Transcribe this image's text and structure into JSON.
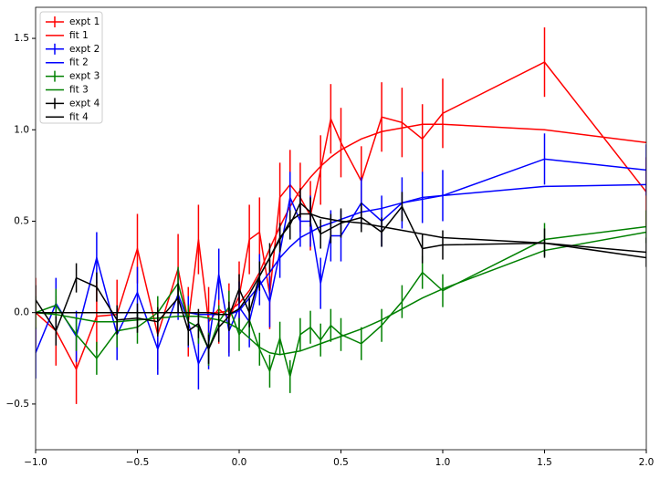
{
  "chart_data": {
    "type": "errorbar",
    "x": [
      -1,
      -0.9,
      -0.8,
      -0.7,
      -0.6,
      -0.5,
      -0.4,
      -0.3,
      -0.25,
      -0.2,
      -0.15,
      -0.1,
      -0.05,
      0,
      0.05,
      0.1,
      0.15,
      0.2,
      0.25,
      0.3,
      0.35,
      0.4,
      0.45,
      0.5,
      0.6,
      0.7,
      0.8,
      0.9,
      1.0,
      1.5,
      2.0
    ],
    "series": [
      {
        "name": "expt 1",
        "color": "#ff0000",
        "error": 0.19,
        "values": [
          0,
          -0.1,
          -0.31,
          -0.02,
          -0.01,
          0.35,
          -0.12,
          0.24,
          -0.05,
          0.4,
          -0.05,
          0.02,
          -0.03,
          0.09,
          0.4,
          0.44,
          0.1,
          0.63,
          0.7,
          0.63,
          0.53,
          0.78,
          1.06,
          0.93,
          0.72,
          1.07,
          1.04,
          0.95,
          1.09,
          1.37,
          0.66
        ]
      },
      {
        "name": "fit 1",
        "color": "#ff0000",
        "values": [
          0,
          0,
          0,
          0,
          0,
          0,
          0,
          0,
          0,
          0,
          0,
          0,
          0.01,
          0.05,
          0.12,
          0.22,
          0.35,
          0.47,
          0.58,
          0.67,
          0.74,
          0.8,
          0.85,
          0.89,
          0.95,
          0.99,
          1.01,
          1.03,
          1.03,
          1.0,
          0.93
        ]
      },
      {
        "name": "expt 2",
        "color": "#0000ff",
        "error": 0.14,
        "values": [
          -0.22,
          0.05,
          -0.13,
          0.3,
          -0.12,
          0.11,
          -0.2,
          0.1,
          -0.05,
          -0.28,
          -0.17,
          0.21,
          -0.1,
          0.03,
          -0.05,
          0.18,
          0.06,
          0.33,
          0.63,
          0.5,
          0.5,
          0.16,
          0.42,
          0.42,
          0.6,
          0.5,
          0.6,
          0.63,
          0.64,
          0.84,
          0.78
        ]
      },
      {
        "name": "fit 2",
        "color": "#0000ff",
        "values": [
          0,
          0,
          0,
          0,
          0,
          0,
          0,
          0,
          0,
          -0.01,
          -0.01,
          -0.01,
          -0.01,
          0.01,
          0.08,
          0.15,
          0.22,
          0.3,
          0.36,
          0.41,
          0.44,
          0.47,
          0.49,
          0.51,
          0.55,
          0.57,
          0.6,
          0.62,
          0.64,
          0.69,
          0.7
        ]
      },
      {
        "name": "expt 3",
        "color": "#008000",
        "error": 0.09,
        "values": [
          0,
          0.04,
          -0.12,
          -0.25,
          -0.1,
          -0.08,
          0,
          0.16,
          -0.05,
          -0.08,
          -0.2,
          -0.05,
          0.03,
          -0.12,
          -0.04,
          -0.2,
          -0.32,
          -0.14,
          -0.35,
          -0.12,
          -0.08,
          -0.15,
          -0.07,
          -0.12,
          -0.17,
          -0.07,
          0.06,
          0.22,
          0.12,
          0.4,
          0.47
        ]
      },
      {
        "name": "fit 3",
        "color": "#008000",
        "values": [
          0,
          -0.01,
          -0.03,
          -0.05,
          -0.05,
          -0.04,
          -0.03,
          -0.02,
          -0.02,
          -0.02,
          -0.03,
          -0.04,
          -0.06,
          -0.09,
          -0.14,
          -0.19,
          -0.22,
          -0.23,
          -0.22,
          -0.21,
          -0.19,
          -0.17,
          -0.15,
          -0.13,
          -0.09,
          -0.04,
          0.02,
          0.08,
          0.13,
          0.34,
          0.44
        ]
      },
      {
        "name": "expt 4",
        "color": "#000000",
        "error": 0.08,
        "values": [
          0.07,
          -0.1,
          0.19,
          0.14,
          -0.04,
          -0.03,
          -0.05,
          0.08,
          -0.1,
          -0.06,
          -0.2,
          -0.08,
          -0.02,
          0.13,
          0,
          0.2,
          0.3,
          0.41,
          0.48,
          0.6,
          0.55,
          0.43,
          0.46,
          0.49,
          0.52,
          0.44,
          0.58,
          0.35,
          0.37,
          0.38,
          0.33
        ]
      },
      {
        "name": "fit 4",
        "color": "#000000",
        "values": [
          0,
          0,
          0,
          0,
          0,
          0,
          0,
          0,
          0,
          0,
          0,
          -0.01,
          -0.01,
          0.02,
          0.1,
          0.2,
          0.3,
          0.4,
          0.5,
          0.54,
          0.54,
          0.52,
          0.51,
          0.5,
          0.49,
          0.47,
          0.45,
          0.43,
          0.41,
          0.38,
          0.3
        ]
      }
    ],
    "xlim": [
      -1.0,
      2.0
    ],
    "ylim": [
      -0.75,
      1.67
    ],
    "xticks": [
      {
        "value": -1.0,
        "label": "−1.0"
      },
      {
        "value": -0.5,
        "label": "−0.5"
      },
      {
        "value": 0,
        "label": "0.0"
      },
      0.5,
      {
        "value": 1,
        "label": "1.0"
      },
      1.5,
      {
        "value": 2,
        "label": "2.0"
      }
    ],
    "yticks": [
      {
        "value": -0.5,
        "label": "−0.5"
      },
      {
        "value": 0,
        "label": "0.0"
      },
      0.5,
      {
        "value": 1,
        "label": "1.0"
      },
      1.5
    ],
    "legend": "upper left"
  }
}
